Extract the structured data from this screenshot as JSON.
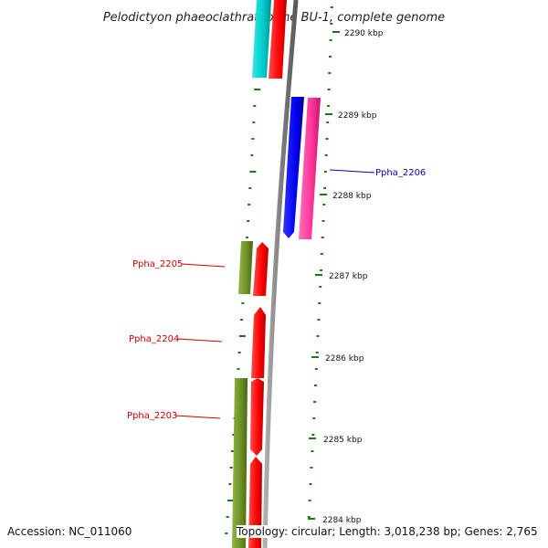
{
  "title": "Pelodictyon phaeoclathratiforme BU-1, complete genome",
  "footer": {
    "accession": "Accession: NC_011060",
    "topology": "Topology: circular; Length: 3,018,238 bp; Genes: 2,765"
  },
  "ticks": [
    {
      "label": "2290 kbp"
    },
    {
      "label": "2289 kbp"
    },
    {
      "label": "2288 kbp"
    },
    {
      "label": "2287 kbp"
    },
    {
      "label": "2286 kbp"
    },
    {
      "label": "2285 kbp"
    },
    {
      "label": "2284 kbp"
    }
  ],
  "genes": [
    {
      "label": "Ppha_2206",
      "color": "#0000cc"
    },
    {
      "label": "Ppha_2205",
      "color": "#cc0000"
    },
    {
      "label": "Ppha_2204",
      "color": "#cc0000"
    },
    {
      "label": "Ppha_2203",
      "color": "#cc0000"
    }
  ],
  "colors": {
    "tick_green": "#1a7a1a",
    "backbone_gray": "#808080",
    "cyan": "#00cccc",
    "red": "#ff0000",
    "blue": "#0000ee",
    "magenta": "#ff3399",
    "olive": "#6b8e23"
  }
}
